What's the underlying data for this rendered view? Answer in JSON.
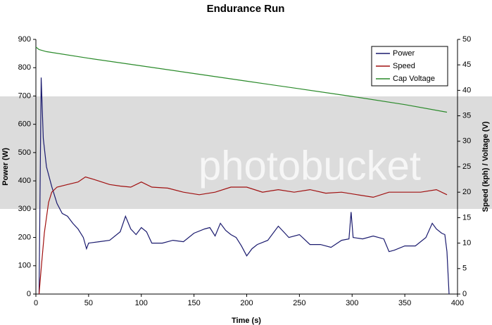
{
  "chart_data": {
    "type": "line",
    "title": "Endurance Run",
    "x_label": "Time (s)",
    "y_label": "Power (W)",
    "y2_label": "Speed (kph) / Voltage (V)",
    "watermark": "photobucket",
    "xlim": [
      0,
      400
    ],
    "xticks": [
      0,
      50,
      100,
      150,
      200,
      250,
      300,
      350,
      400
    ],
    "ylim": [
      0,
      900
    ],
    "yticks": [
      0,
      100,
      200,
      300,
      400,
      500,
      600,
      700,
      800,
      900
    ],
    "y2lim": [
      0,
      50
    ],
    "y2ticks": [
      0,
      5,
      10,
      15,
      20,
      25,
      30,
      35,
      40,
      45,
      50
    ],
    "legend": "top-right",
    "grid": false,
    "series": [
      {
        "name": "Power",
        "color": "#1a1a6e",
        "x": [
          3,
          5,
          7,
          10,
          15,
          20,
          25,
          30,
          35,
          40,
          45,
          48,
          50,
          60,
          70,
          80,
          85,
          90,
          95,
          100,
          105,
          110,
          120,
          130,
          140,
          150,
          160,
          165,
          170,
          175,
          180,
          185,
          190,
          195,
          200,
          205,
          210,
          220,
          230,
          235,
          240,
          250,
          260,
          270,
          280,
          290,
          297,
          299,
          301,
          310,
          320,
          330,
          335,
          340,
          350,
          360,
          370,
          376,
          380,
          385,
          388,
          390,
          392
        ],
        "values": [
          0,
          765,
          550,
          450,
          380,
          320,
          285,
          275,
          250,
          230,
          200,
          160,
          180,
          185,
          190,
          220,
          275,
          230,
          210,
          235,
          220,
          180,
          180,
          190,
          185,
          215,
          230,
          235,
          205,
          250,
          225,
          210,
          200,
          170,
          135,
          160,
          175,
          190,
          240,
          220,
          200,
          210,
          175,
          175,
          165,
          190,
          195,
          290,
          200,
          195,
          205,
          195,
          150,
          155,
          170,
          170,
          200,
          250,
          230,
          215,
          210,
          150,
          0
        ]
      },
      {
        "name": "Speed",
        "color": "#a01010",
        "axis": "y2",
        "x": [
          3,
          5,
          8,
          12,
          15,
          20,
          30,
          40,
          47,
          55,
          70,
          80,
          90,
          100,
          110,
          125,
          140,
          155,
          170,
          185,
          200,
          215,
          230,
          245,
          260,
          275,
          290,
          305,
          320,
          335,
          350,
          365,
          380,
          390
        ],
        "values": [
          0,
          5,
          12,
          18,
          20,
          21,
          21.5,
          22,
          23,
          22.5,
          21.5,
          21.2,
          21,
          22,
          21,
          20.8,
          20,
          19.5,
          20,
          21,
          21,
          20,
          20.5,
          20,
          20.5,
          19.8,
          20,
          19.5,
          19,
          20,
          20,
          20,
          20.5,
          19.5
        ]
      },
      {
        "name": "Cap Voltage",
        "color": "#2a8a2a",
        "axis": "y2",
        "x": [
          0,
          3,
          10,
          50,
          100,
          150,
          200,
          250,
          300,
          350,
          390
        ],
        "values": [
          48.5,
          48,
          47.6,
          46.3,
          44.8,
          43.3,
          41.8,
          40.3,
          38.8,
          37.2,
          35.7
        ]
      }
    ]
  }
}
